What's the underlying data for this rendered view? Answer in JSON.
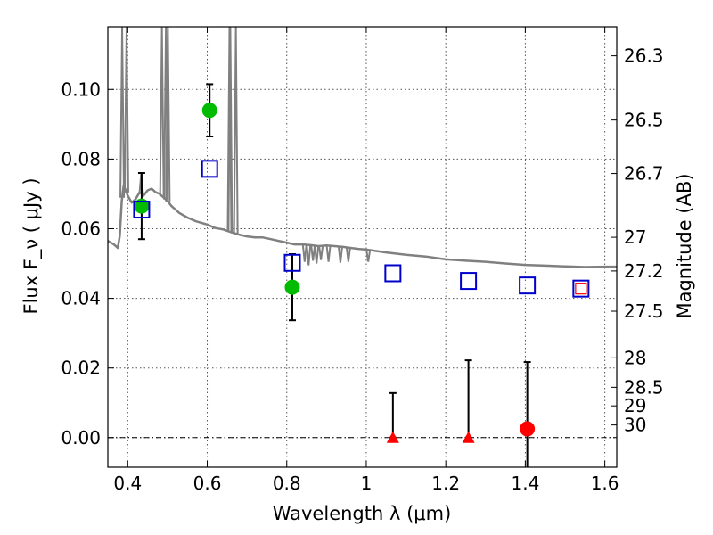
{
  "chart_data": {
    "type": "scatter",
    "title": "",
    "xlabel": "Wavelength  λ (μm)",
    "ylabel": "Flux  F_ν  ( μJy )",
    "y2label": "Magnitude (AB)",
    "xlim": [
      0.35,
      1.63
    ],
    "ylim": [
      -0.0085,
      0.118
    ],
    "grid": true,
    "x_ticks": [
      0.4,
      0.6,
      0.8,
      1.0,
      1.2,
      1.4,
      1.6
    ],
    "x_tick_labels": [
      "0.4",
      "0.6",
      "0.8",
      "1",
      "1.2",
      "1.4",
      "1.6"
    ],
    "y_ticks": [
      0.0,
      0.02,
      0.04,
      0.06,
      0.08,
      0.1
    ],
    "y_tick_labels": [
      "0.00",
      "0.02",
      "0.04",
      "0.06",
      "0.08",
      "0.10"
    ],
    "magnitude_ticks": [
      "26.3",
      "26.5",
      "26.7",
      "27",
      "27.2",
      "27.5",
      "28",
      "28.5",
      "29",
      "30"
    ],
    "colors": {
      "model": "#808080",
      "detection": "#00bb00",
      "nondetection": "#ff0000",
      "model_photometry": "#0000cc",
      "highlight_box": "#ff0000",
      "errorbar": "#000000",
      "grid": "#555555",
      "zero_line": "#000000"
    },
    "series": [
      {
        "marker": "circle",
        "color": "#00bb00",
        "points": [
          {
            "x": 0.435,
            "y": 0.0665,
            "yerr": 0.0095
          },
          {
            "x": 0.606,
            "y": 0.094,
            "yerr": 0.0075
          },
          {
            "x": 0.814,
            "y": 0.0432,
            "yerr": 0.0095
          }
        ]
      },
      {
        "marker": "triangle",
        "color": "#ff0000",
        "points": [
          {
            "x": 1.067,
            "y": 0.0,
            "yerr_up": 0.0128
          },
          {
            "x": 1.257,
            "y": 0.0,
            "yerr_up": 0.0222
          }
        ]
      },
      {
        "marker": "circle",
        "color": "#ff0000",
        "points": [
          {
            "x": 1.405,
            "y": 0.0025,
            "yerr": 0.0192
          }
        ]
      },
      {
        "marker": "square",
        "color": "#0000cc",
        "points": [
          {
            "x": 0.435,
            "y": 0.0655
          },
          {
            "x": 0.606,
            "y": 0.0772
          },
          {
            "x": 0.814,
            "y": 0.0502
          },
          {
            "x": 1.067,
            "y": 0.0472
          },
          {
            "x": 1.257,
            "y": 0.045
          },
          {
            "x": 1.405,
            "y": 0.0437
          },
          {
            "x": 1.54,
            "y": 0.0428
          }
        ]
      },
      {
        "marker": "square-small",
        "color": "#ff0000",
        "points": [
          {
            "x": 1.54,
            "y": 0.0428
          }
        ]
      }
    ],
    "model_spectrum": [
      [
        0.35,
        0.0565
      ],
      [
        0.365,
        0.0555
      ],
      [
        0.375,
        0.0545
      ],
      [
        0.38,
        0.058
      ],
      [
        0.385,
        0.068
      ],
      [
        0.39,
        0.0725
      ],
      [
        0.4,
        0.0695
      ],
      [
        0.41,
        0.0675
      ],
      [
        0.42,
        0.0685
      ],
      [
        0.43,
        0.0705
      ],
      [
        0.44,
        0.0695
      ],
      [
        0.45,
        0.071
      ],
      [
        0.46,
        0.0715
      ],
      [
        0.47,
        0.0705
      ],
      [
        0.48,
        0.07
      ],
      [
        0.49,
        0.069
      ],
      [
        0.5,
        0.068
      ],
      [
        0.51,
        0.0665
      ],
      [
        0.52,
        0.0655
      ],
      [
        0.53,
        0.0645
      ],
      [
        0.55,
        0.0632
      ],
      [
        0.57,
        0.0622
      ],
      [
        0.6,
        0.0612
      ],
      [
        0.62,
        0.0602
      ],
      [
        0.64,
        0.0598
      ],
      [
        0.66,
        0.059
      ],
      [
        0.68,
        0.0583
      ],
      [
        0.7,
        0.0578
      ],
      [
        0.72,
        0.0575
      ],
      [
        0.74,
        0.0575
      ],
      [
        0.76,
        0.057
      ],
      [
        0.78,
        0.0565
      ],
      [
        0.8,
        0.056
      ],
      [
        0.82,
        0.0555
      ],
      [
        0.84,
        0.0555
      ],
      [
        0.86,
        0.0553
      ],
      [
        0.88,
        0.055
      ],
      [
        0.9,
        0.0552
      ],
      [
        0.92,
        0.055
      ],
      [
        0.94,
        0.0548
      ],
      [
        0.96,
        0.0545
      ],
      [
        0.98,
        0.0542
      ],
      [
        1.0,
        0.054
      ],
      [
        1.05,
        0.0532
      ],
      [
        1.1,
        0.0525
      ],
      [
        1.15,
        0.052
      ],
      [
        1.2,
        0.0512
      ],
      [
        1.25,
        0.0508
      ],
      [
        1.3,
        0.0505
      ],
      [
        1.35,
        0.05
      ],
      [
        1.4,
        0.0496
      ],
      [
        1.45,
        0.0494
      ],
      [
        1.5,
        0.0492
      ],
      [
        1.55,
        0.049
      ],
      [
        1.6,
        0.0491
      ],
      [
        1.63,
        0.0491
      ]
    ],
    "model_emission_lines": [
      {
        "x": 0.386,
        "peak": 0.118
      },
      {
        "x": 0.397,
        "peak": 0.118
      },
      {
        "x": 0.434,
        "peak": 0.076
      },
      {
        "x": 0.486,
        "peak": 0.118
      },
      {
        "x": 0.496,
        "peak": 0.118
      },
      {
        "x": 0.501,
        "peak": 0.118
      },
      {
        "x": 0.656,
        "peak": 0.118
      },
      {
        "x": 0.658,
        "peak": 0.118
      },
      {
        "x": 0.672,
        "peak": 0.118
      }
    ],
    "model_absorption_features": [
      {
        "x": 0.845,
        "depth": 0.0505
      },
      {
        "x": 0.855,
        "depth": 0.0495
      },
      {
        "x": 0.866,
        "depth": 0.0508
      },
      {
        "x": 0.875,
        "depth": 0.05
      },
      {
        "x": 0.886,
        "depth": 0.051
      },
      {
        "x": 0.905,
        "depth": 0.0505
      },
      {
        "x": 0.935,
        "depth": 0.0502
      },
      {
        "x": 0.955,
        "depth": 0.0505
      },
      {
        "x": 1.005,
        "depth": 0.0505
      }
    ]
  }
}
